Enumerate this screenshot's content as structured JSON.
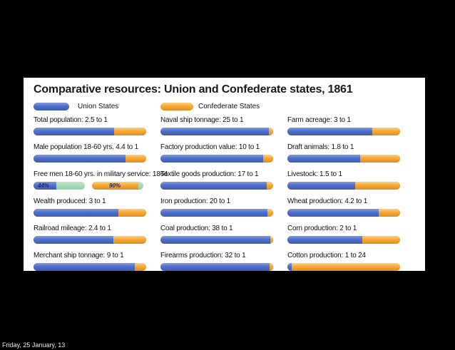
{
  "slide": {
    "footer": "Friday, 25 January, 13"
  },
  "colors": {
    "union": "#4f6fc8",
    "confederate": "#f6a739",
    "percent_track": "#8fd0a5"
  },
  "chart_data": {
    "type": "bar",
    "title": "Comparative resources: Union and Confederate states, 1861",
    "legend": [
      "Union States",
      "Confederate States"
    ],
    "legend_placement": "top",
    "grid": false,
    "items": [
      {
        "label": "Total population: 2.5 to 1",
        "union": 2.5,
        "confederate": 1
      },
      {
        "label": "Naval ship tonnage: 25 to 1",
        "union": 25,
        "confederate": 1
      },
      {
        "label": "Farm acreage: 3 to 1",
        "union": 3,
        "confederate": 1
      },
      {
        "label": "Male population 18-60 yrs. 4.4 to 1",
        "union": 4.4,
        "confederate": 1
      },
      {
        "label": "Factory production value: 10 to 1",
        "union": 10,
        "confederate": 1
      },
      {
        "label": "Draft animals: 1.8 to 1",
        "union": 1.8,
        "confederate": 1
      },
      {
        "label": "Free men 18-60 yrs. in military service: 1864",
        "type": "percent",
        "bars": [
          {
            "series": "Union States",
            "value": 44,
            "text": "44%"
          },
          {
            "series": "Confederate States",
            "value": 90,
            "text": "90%"
          }
        ]
      },
      {
        "label": "Textile goods production: 17 to 1",
        "union": 17,
        "confederate": 1
      },
      {
        "label": "Livestock: 1.5 to 1",
        "union": 1.5,
        "confederate": 1
      },
      {
        "label": "Wealth produced: 3 to 1",
        "union": 3,
        "confederate": 1
      },
      {
        "label": "Iron production: 20 to 1",
        "union": 20,
        "confederate": 1
      },
      {
        "label": "Wheat production: 4.2 to 1",
        "union": 4.2,
        "confederate": 1
      },
      {
        "label": "Railroad mileage: 2.4 to 1",
        "union": 2.4,
        "confederate": 1
      },
      {
        "label": "Coal production: 38 to 1",
        "union": 38,
        "confederate": 1
      },
      {
        "label": "Corn production: 2 to 1",
        "union": 2,
        "confederate": 1
      },
      {
        "label": "Merchant ship tonnage: 9 to 1",
        "union": 9,
        "confederate": 1
      },
      {
        "label": "Firearms production: 32 to 1",
        "union": 32,
        "confederate": 1
      },
      {
        "label": "Cotton production: 1 to 24",
        "union": 1,
        "confederate": 24
      }
    ]
  }
}
